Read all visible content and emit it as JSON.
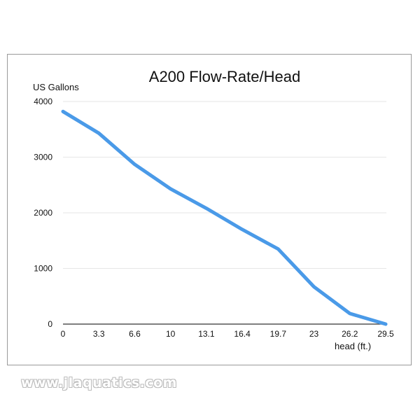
{
  "chart_data": {
    "type": "line",
    "title": "A200 Flow-Rate/Head",
    "xlabel": "head (ft.)",
    "ylabel": "US Gallons",
    "categories": [
      "0",
      "3.3",
      "6.6",
      "10",
      "13.1",
      "16.4",
      "19.7",
      "23",
      "26.2",
      "29.5"
    ],
    "x": [
      0,
      3.3,
      6.6,
      10,
      13.1,
      16.4,
      19.7,
      23,
      26.2,
      29.5
    ],
    "series": [
      {
        "name": "A200",
        "color": "#4a9ae8",
        "values": [
          3820,
          3430,
          2870,
          2430,
          2080,
          1700,
          1350,
          670,
          190,
          0
        ]
      }
    ],
    "yticks": [
      0,
      1000,
      2000,
      3000,
      4000
    ],
    "ylim": [
      0,
      4000
    ],
    "grid": true,
    "legend": false
  },
  "watermark": "www.jlaquatics.com"
}
